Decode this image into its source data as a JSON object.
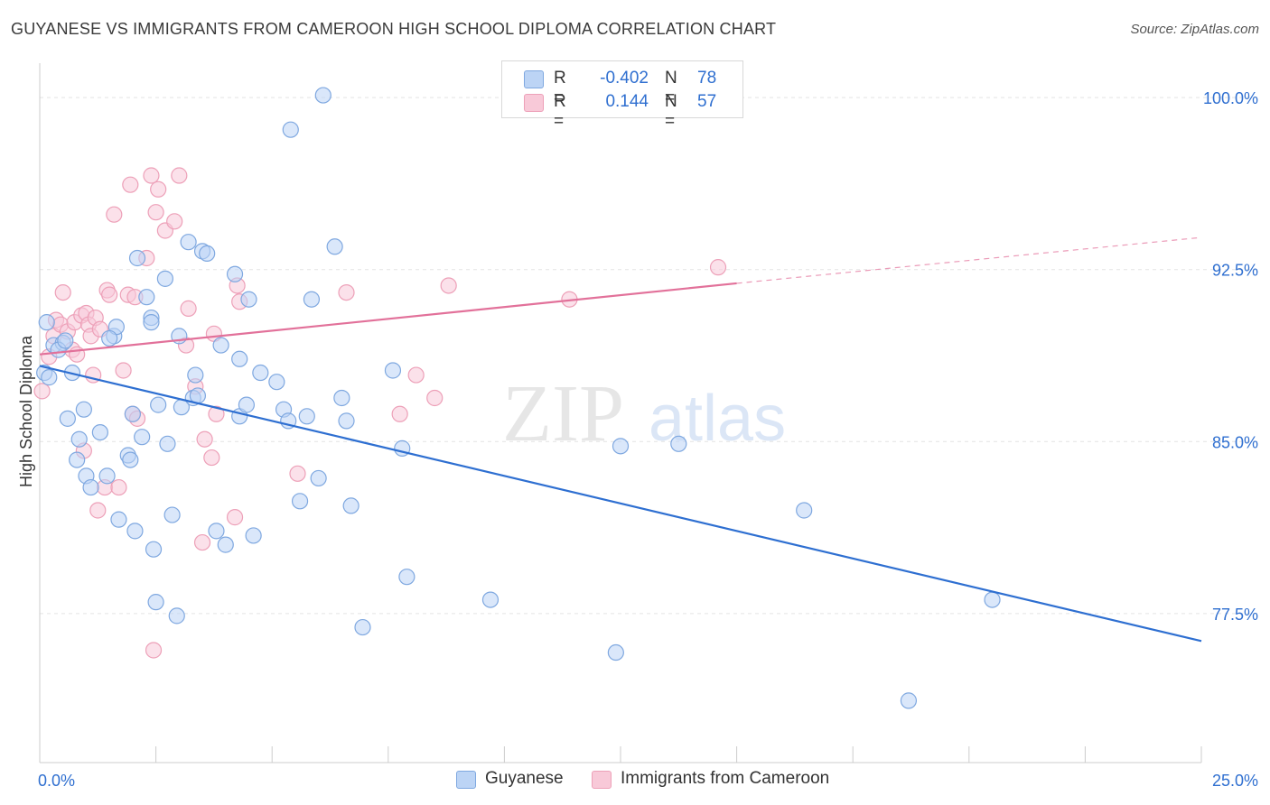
{
  "title": "GUYANESE VS IMMIGRANTS FROM CAMEROON HIGH SCHOOL DIPLOMA CORRELATION CHART",
  "source": "Source: ZipAtlas.com",
  "watermark": {
    "zip": "ZIP",
    "atlas": "atlas"
  },
  "legend_top": [
    {
      "r_label": "R =",
      "r_value": "-0.402",
      "n_label": "N =",
      "n_value": "78"
    },
    {
      "r_label": "R =",
      "r_value": "0.144",
      "n_label": "N =",
      "n_value": "57"
    }
  ],
  "legend_bottom": [
    {
      "label": "Guyanese"
    },
    {
      "label": "Immigrants from Cameroon"
    }
  ],
  "colors": {
    "blue_fill": "#bcd4f5",
    "blue_stroke": "#7fa8e0",
    "blue_line": "#2e6fd1",
    "pink_fill": "#f8c9d8",
    "pink_stroke": "#eda0b8",
    "pink_line": "#e2719a",
    "axis_text": "#2f6fd0"
  },
  "chart_data": {
    "type": "scatter",
    "title": "GUYANESE VS IMMIGRANTS FROM CAMEROON HIGH SCHOOL DIPLOMA CORRELATION CHART",
    "xlabel": "",
    "ylabel": "High School Diploma",
    "xlim": [
      0.0,
      25.0
    ],
    "ylim": [
      71.0,
      101.5
    ],
    "x_tick_labels": [
      "0.0%",
      "25.0%"
    ],
    "y_ticks": [
      77.5,
      85.0,
      92.5,
      100.0
    ],
    "y_tick_labels": [
      "77.5%",
      "85.0%",
      "92.5%",
      "100.0%"
    ],
    "grid": true,
    "legend_position": "top-center",
    "series": [
      {
        "name": "Guyanese",
        "color": "#bcd4f5",
        "r": -0.402,
        "n": 78,
        "trend": {
          "x": [
            0.0,
            25.0
          ],
          "y": [
            88.3,
            76.3
          ],
          "dashed_from": null
        },
        "points": [
          [
            0.1,
            88.0
          ],
          [
            0.15,
            90.2
          ],
          [
            0.3,
            89.2
          ],
          [
            0.5,
            89.3
          ],
          [
            0.6,
            86.0
          ],
          [
            0.7,
            88.0
          ],
          [
            0.8,
            84.2
          ],
          [
            0.85,
            85.1
          ],
          [
            0.95,
            86.4
          ],
          [
            1.0,
            83.5
          ],
          [
            1.1,
            83.0
          ],
          [
            1.3,
            85.4
          ],
          [
            1.45,
            83.5
          ],
          [
            1.6,
            89.6
          ],
          [
            1.65,
            90.0
          ],
          [
            1.7,
            81.6
          ],
          [
            1.9,
            84.4
          ],
          [
            1.95,
            84.2
          ],
          [
            2.0,
            86.2
          ],
          [
            2.05,
            81.1
          ],
          [
            2.1,
            93.0
          ],
          [
            2.2,
            85.2
          ],
          [
            2.3,
            91.3
          ],
          [
            2.4,
            90.4
          ],
          [
            2.4,
            90.2
          ],
          [
            2.5,
            78.0
          ],
          [
            2.55,
            86.6
          ],
          [
            2.7,
            92.1
          ],
          [
            2.75,
            84.9
          ],
          [
            2.85,
            81.8
          ],
          [
            2.95,
            77.4
          ],
          [
            3.0,
            89.6
          ],
          [
            3.05,
            86.5
          ],
          [
            3.2,
            93.7
          ],
          [
            3.3,
            86.9
          ],
          [
            3.35,
            87.9
          ],
          [
            3.4,
            87.0
          ],
          [
            3.5,
            93.3
          ],
          [
            3.6,
            93.2
          ],
          [
            3.8,
            81.1
          ],
          [
            3.9,
            89.2
          ],
          [
            4.0,
            80.5
          ],
          [
            4.2,
            92.3
          ],
          [
            4.3,
            88.6
          ],
          [
            4.3,
            86.1
          ],
          [
            4.45,
            86.6
          ],
          [
            4.5,
            91.2
          ],
          [
            4.6,
            80.9
          ],
          [
            4.75,
            88.0
          ],
          [
            5.1,
            87.6
          ],
          [
            5.25,
            86.4
          ],
          [
            5.35,
            85.9
          ],
          [
            5.4,
            98.6
          ],
          [
            5.6,
            82.4
          ],
          [
            5.75,
            86.1
          ],
          [
            5.85,
            91.2
          ],
          [
            6.0,
            83.4
          ],
          [
            6.1,
            100.1
          ],
          [
            6.35,
            93.5
          ],
          [
            6.5,
            86.9
          ],
          [
            6.6,
            85.9
          ],
          [
            6.7,
            82.2
          ],
          [
            6.95,
            76.9
          ],
          [
            7.6,
            88.1
          ],
          [
            7.8,
            84.7
          ],
          [
            7.9,
            79.1
          ],
          [
            9.7,
            78.1
          ],
          [
            12.4,
            75.8
          ],
          [
            12.5,
            84.8
          ],
          [
            13.75,
            84.9
          ],
          [
            16.45,
            82.0
          ],
          [
            18.7,
            73.7
          ],
          [
            20.5,
            78.1
          ],
          [
            0.2,
            87.8
          ],
          [
            0.4,
            89.0
          ],
          [
            0.55,
            89.4
          ],
          [
            1.5,
            89.5
          ],
          [
            2.45,
            80.3
          ]
        ]
      },
      {
        "name": "Immigrants from Cameroon",
        "color": "#f8c9d8",
        "r": 0.144,
        "n": 57,
        "trend": {
          "x": [
            0.0,
            15.0,
            25.0
          ],
          "y": [
            88.8,
            91.9,
            93.9
          ],
          "dashed_from": 15.0
        },
        "points": [
          [
            0.05,
            87.2
          ],
          [
            0.2,
            88.7
          ],
          [
            0.3,
            89.6
          ],
          [
            0.35,
            90.3
          ],
          [
            0.45,
            90.1
          ],
          [
            0.5,
            91.5
          ],
          [
            0.6,
            89.8
          ],
          [
            0.7,
            89.0
          ],
          [
            0.75,
            90.2
          ],
          [
            0.8,
            88.8
          ],
          [
            0.9,
            90.5
          ],
          [
            0.95,
            84.6
          ],
          [
            1.0,
            90.6
          ],
          [
            1.05,
            90.1
          ],
          [
            1.1,
            89.6
          ],
          [
            1.15,
            87.9
          ],
          [
            1.2,
            90.4
          ],
          [
            1.25,
            82.0
          ],
          [
            1.3,
            89.9
          ],
          [
            1.4,
            83.0
          ],
          [
            1.45,
            91.6
          ],
          [
            1.5,
            91.4
          ],
          [
            1.6,
            94.9
          ],
          [
            1.7,
            83.0
          ],
          [
            1.8,
            88.1
          ],
          [
            1.9,
            91.4
          ],
          [
            1.95,
            96.2
          ],
          [
            2.0,
            86.2
          ],
          [
            2.05,
            91.3
          ],
          [
            2.1,
            86.0
          ],
          [
            2.3,
            93.0
          ],
          [
            2.4,
            96.6
          ],
          [
            2.45,
            75.9
          ],
          [
            2.5,
            95.0
          ],
          [
            2.55,
            96.0
          ],
          [
            2.7,
            94.2
          ],
          [
            2.9,
            94.6
          ],
          [
            3.0,
            96.6
          ],
          [
            3.15,
            89.2
          ],
          [
            3.2,
            90.8
          ],
          [
            3.35,
            87.4
          ],
          [
            3.5,
            80.6
          ],
          [
            3.55,
            85.1
          ],
          [
            3.7,
            84.3
          ],
          [
            3.75,
            89.7
          ],
          [
            3.8,
            86.2
          ],
          [
            4.2,
            81.7
          ],
          [
            4.25,
            91.8
          ],
          [
            4.3,
            91.1
          ],
          [
            5.55,
            83.6
          ],
          [
            6.6,
            91.5
          ],
          [
            7.75,
            86.2
          ],
          [
            8.1,
            87.9
          ],
          [
            8.5,
            86.9
          ],
          [
            8.8,
            91.8
          ],
          [
            11.4,
            91.2
          ],
          [
            14.6,
            92.6
          ]
        ]
      }
    ]
  }
}
